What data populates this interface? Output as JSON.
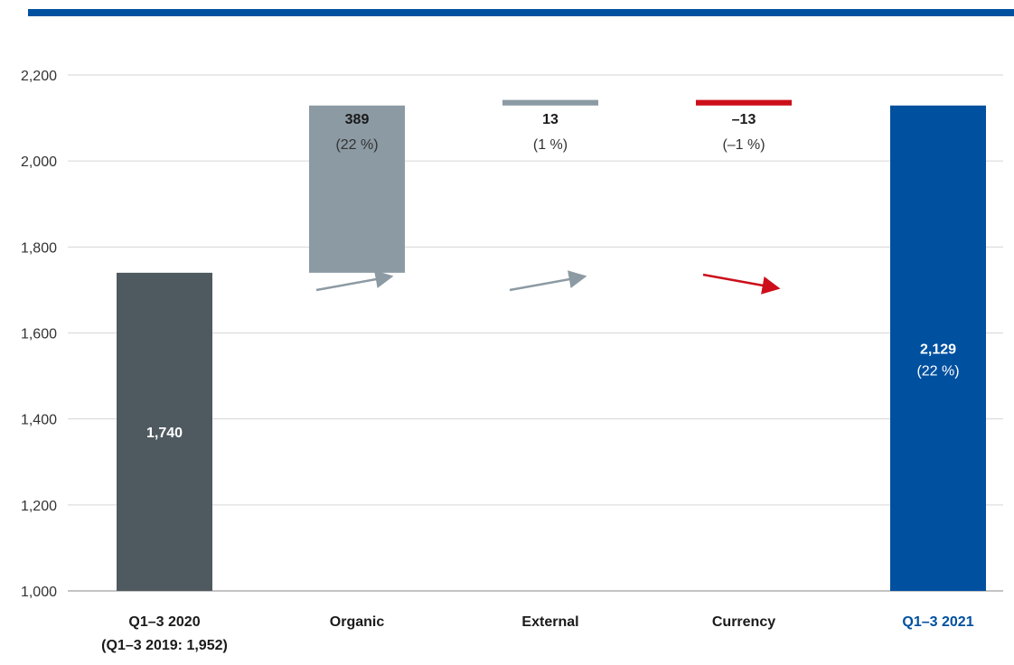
{
  "chart_data": {
    "type": "bar",
    "subtype": "waterfall",
    "ylim": [
      1000,
      2200
    ],
    "yticks": [
      1000,
      1200,
      1400,
      1600,
      1800,
      2000,
      2200
    ],
    "ytick_labels": [
      "1,000",
      "1,200",
      "1,400",
      "1,600",
      "1,800",
      "2,000",
      "2,200"
    ],
    "grid": true,
    "xlabel": "",
    "ylabel": "",
    "title": "",
    "categories": [
      {
        "key": "q1-3-2020",
        "label": [
          "Q1–3 2020",
          "(Q1–3 2019: 1,952)"
        ],
        "kind": "total",
        "value": 1740,
        "base": 1000,
        "top": 1740,
        "value_label": "1,740",
        "pct_label": "",
        "label_position": "inside",
        "color": "#4f5a60",
        "label_color": "#1a1a1a"
      },
      {
        "key": "organic",
        "label": [
          "Organic"
        ],
        "kind": "change",
        "value": 389,
        "base": 1740,
        "top": 2129,
        "value_label": "389",
        "pct_label": "(22 %)",
        "label_position": "above",
        "color": "#8c9aa3",
        "trend": "up",
        "label_color": "#1a1a1a"
      },
      {
        "key": "external",
        "label": [
          "External"
        ],
        "kind": "change",
        "value": 13,
        "base": 2129,
        "top": 2142,
        "value_label": "13",
        "pct_label": "(1 %)",
        "label_position": "above",
        "color": "#8c9aa3",
        "trend": "up",
        "label_color": "#1a1a1a"
      },
      {
        "key": "currency",
        "label": [
          "Currency"
        ],
        "kind": "change",
        "value": -13,
        "base": 2142,
        "top": 2129,
        "value_label": "–13",
        "pct_label": "(–1 %)",
        "label_position": "above",
        "color": "#cc0f1a",
        "trend": "down",
        "label_color": "#1a1a1a"
      },
      {
        "key": "q1-3-2021",
        "label": [
          "Q1–3 2021"
        ],
        "kind": "total",
        "value": 2129,
        "base": 1000,
        "top": 2129,
        "value_label": "2,129",
        "pct_label": "(22 %)",
        "label_position": "inside",
        "color": "#0050a0",
        "label_color": "#0050a0"
      }
    ],
    "colors": {
      "brand_bar": "#0050a0",
      "prior_total": "#4f5a60",
      "increase": "#8c9aa3",
      "decrease": "#cc0f1a",
      "grid": "#d6d6d6"
    }
  }
}
